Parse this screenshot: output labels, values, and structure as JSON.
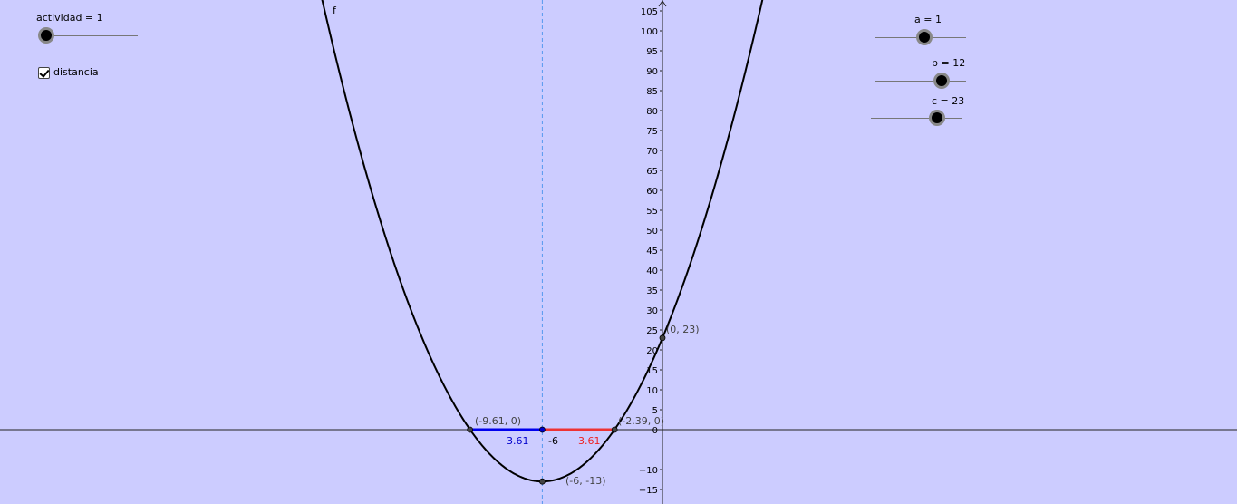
{
  "sliders": {
    "actividad": {
      "label": "actividad = 1",
      "value": 1
    },
    "a": {
      "label": "a = 1",
      "value": 1
    },
    "b": {
      "label": "b = 12",
      "value": 12
    },
    "c": {
      "label": "c = 23",
      "value": 23
    }
  },
  "checkbox_distancia": {
    "label": "distancia",
    "checked": true
  },
  "graph": {
    "function_label": "f",
    "y_ticks": [
      -15,
      -10,
      0,
      5,
      10,
      15,
      20,
      25,
      30,
      35,
      40,
      45,
      50,
      55,
      60,
      65,
      70,
      75,
      80,
      85,
      90,
      95,
      100,
      105
    ],
    "y_tick_labels": [
      "−15",
      "−10",
      "0",
      "5",
      "10",
      "15",
      "20",
      "25",
      "30",
      "35",
      "40",
      "45",
      "50",
      "55",
      "60",
      "65",
      "70",
      "75",
      "80",
      "85",
      "90",
      "95",
      "100",
      "105"
    ],
    "points": [
      {
        "name": "root-left",
        "x": -9.61,
        "y": 0,
        "label": "(-9.61, 0)"
      },
      {
        "name": "root-right",
        "x": -2.39,
        "y": 0,
        "label": "(-2.39, 0)"
      },
      {
        "name": "y-intercept",
        "x": 0,
        "y": 23,
        "label": "(0, 23)"
      },
      {
        "name": "vertex",
        "x": -6,
        "y": -13,
        "label": "(-6, -13)"
      },
      {
        "name": "axis-point",
        "x": -6,
        "y": 0,
        "label": ""
      }
    ],
    "axis_of_symmetry_label": "-6",
    "distance_left": {
      "label": "3.61",
      "color": "#0000cc"
    },
    "distance_right": {
      "label": "3.61",
      "color": "#ee2222"
    },
    "colors": {
      "curve": "#000000",
      "axis_of_symmetry": "#5599ee",
      "segment_left": "#0000ee",
      "segment_right": "#ee3333"
    }
  }
}
